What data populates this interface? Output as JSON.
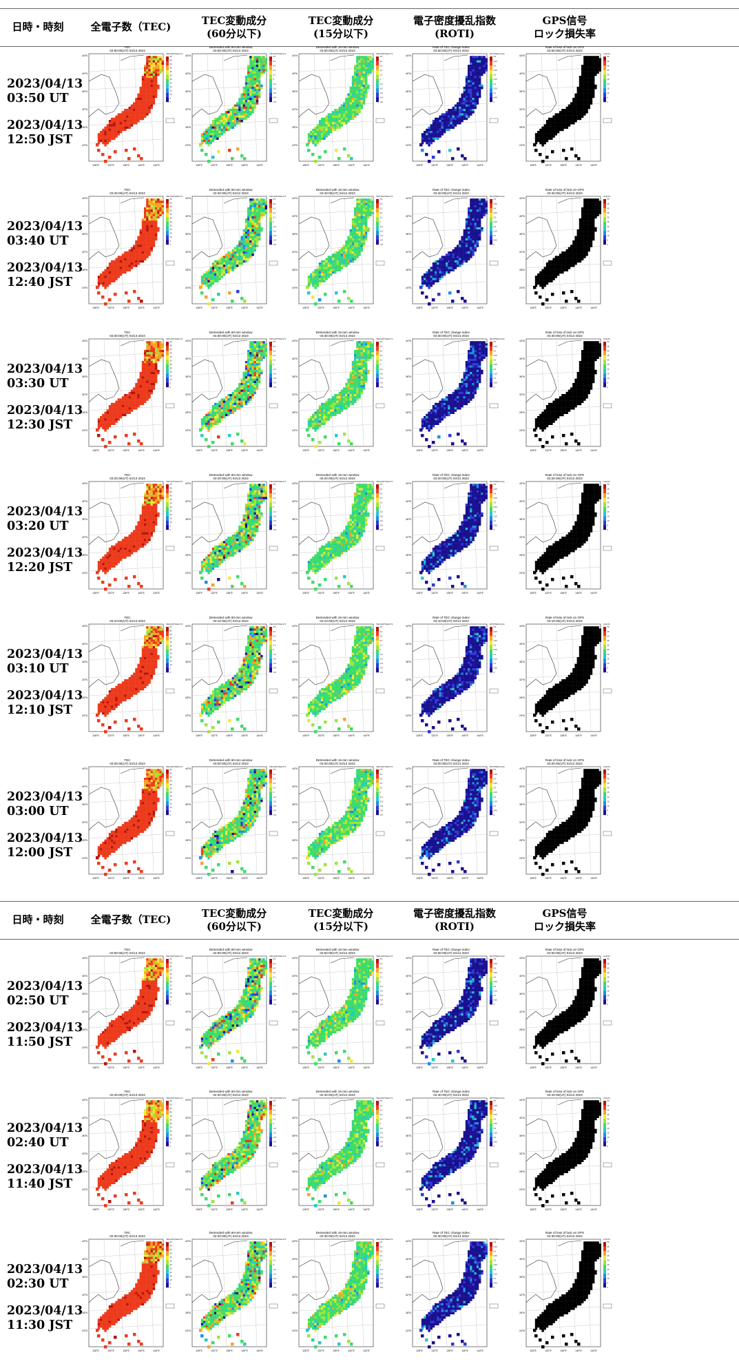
{
  "headers": [
    {
      "line1": "日時・時刻",
      "line2": ""
    },
    {
      "line1": "全電子数（TEC)",
      "line2": ""
    },
    {
      "line1": "TEC変動成分",
      "line2": "(60分以下)"
    },
    {
      "line1": "TEC変動成分",
      "line2": "(15分以下)"
    },
    {
      "line1": "電子密度擾乱指数",
      "line2": "(ROTI)"
    },
    {
      "line1": "GPS信号",
      "line2": "ロック損失率"
    }
  ],
  "panel_titles": {
    "tec": "TEC",
    "dtec60": "Detrended with 60-min window",
    "dtec15": "Detrended with 15-min window",
    "roti": "Rate of TEC change index",
    "lol": "Rate of loss of lock on GPS"
  },
  "colorbar_units": {
    "tec": "TECU(10^16el/m^2)",
    "dtec": "TECU(10^16el/m^2)",
    "roti": "ROTI(TECU/min)",
    "lol": "LOL(%)"
  },
  "lon_labels": [
    "128°E",
    "132°E",
    "136°E",
    "140°E",
    "144°E"
  ],
  "lat_labels": [
    "44°N",
    "40°N",
    "36°N",
    "32°N",
    "28°N",
    "24°N"
  ],
  "colormap": [
    "#1a0f8f",
    "#2d3bd4",
    "#1f8fe0",
    "#27c9c7",
    "#3ddc6a",
    "#9ee63a",
    "#f2e838",
    "#f9a227",
    "#ec3b1c",
    "#b3140e"
  ],
  "colorbar_ticks": {
    "tec": [
      "60",
      "55",
      "50",
      "45",
      "40",
      "35",
      "30",
      "25",
      "20",
      "15",
      "10",
      "5",
      "0"
    ],
    "dtec": [
      "0.5",
      "0.4",
      "0.3",
      "0.2",
      "0.1",
      "0",
      "-0.1",
      "-0.2",
      "-0.3",
      "-0.4",
      "-0.5"
    ],
    "roti": [
      "0.5",
      "0.45",
      "0.4",
      "0.35",
      "0.3",
      "0.25",
      "0.2",
      "0.15",
      "0.1",
      "0.05",
      "0"
    ],
    "lol": [
      "50",
      "45",
      "40",
      "35",
      "30",
      "25",
      "20",
      "15",
      "10",
      "5",
      "0"
    ]
  },
  "rows": [
    {
      "date": "2023/04/13",
      "ut": "03:50 UT",
      "jst": "12:50 JST",
      "stamp": "03:50:00(UT) 04/13 2023"
    },
    {
      "date": "2023/04/13",
      "ut": "03:40 UT",
      "jst": "12:40 JST",
      "stamp": "03:40:00(UT) 04/13 2023"
    },
    {
      "date": "2023/04/13",
      "ut": "03:30 UT",
      "jst": "12:30 JST",
      "stamp": "03:30:00(UT) 04/13 2023"
    },
    {
      "date": "2023/04/13",
      "ut": "03:20 UT",
      "jst": "12:20 JST",
      "stamp": "03:20:00(UT) 04/13 2023"
    },
    {
      "date": "2023/04/13",
      "ut": "03:10 UT",
      "jst": "12:10 JST",
      "stamp": "03:10:00(UT) 04/13 2023"
    },
    {
      "date": "2023/04/13",
      "ut": "03:00 UT",
      "jst": "12:00 JST",
      "stamp": "03:00:00(UT) 04/13 2023"
    },
    {
      "date": "2023/04/13",
      "ut": "02:50 UT",
      "jst": "11:50 JST",
      "stamp": "02:50:00(UT) 04/13 2023"
    },
    {
      "date": "2023/04/13",
      "ut": "02:40 UT",
      "jst": "11:40 JST",
      "stamp": "02:40:00(UT) 04/13 2023"
    },
    {
      "date": "2023/04/13",
      "ut": "02:30 UT",
      "jst": "11:30 JST",
      "stamp": "02:30:00(UT) 04/13 2023"
    }
  ]
}
